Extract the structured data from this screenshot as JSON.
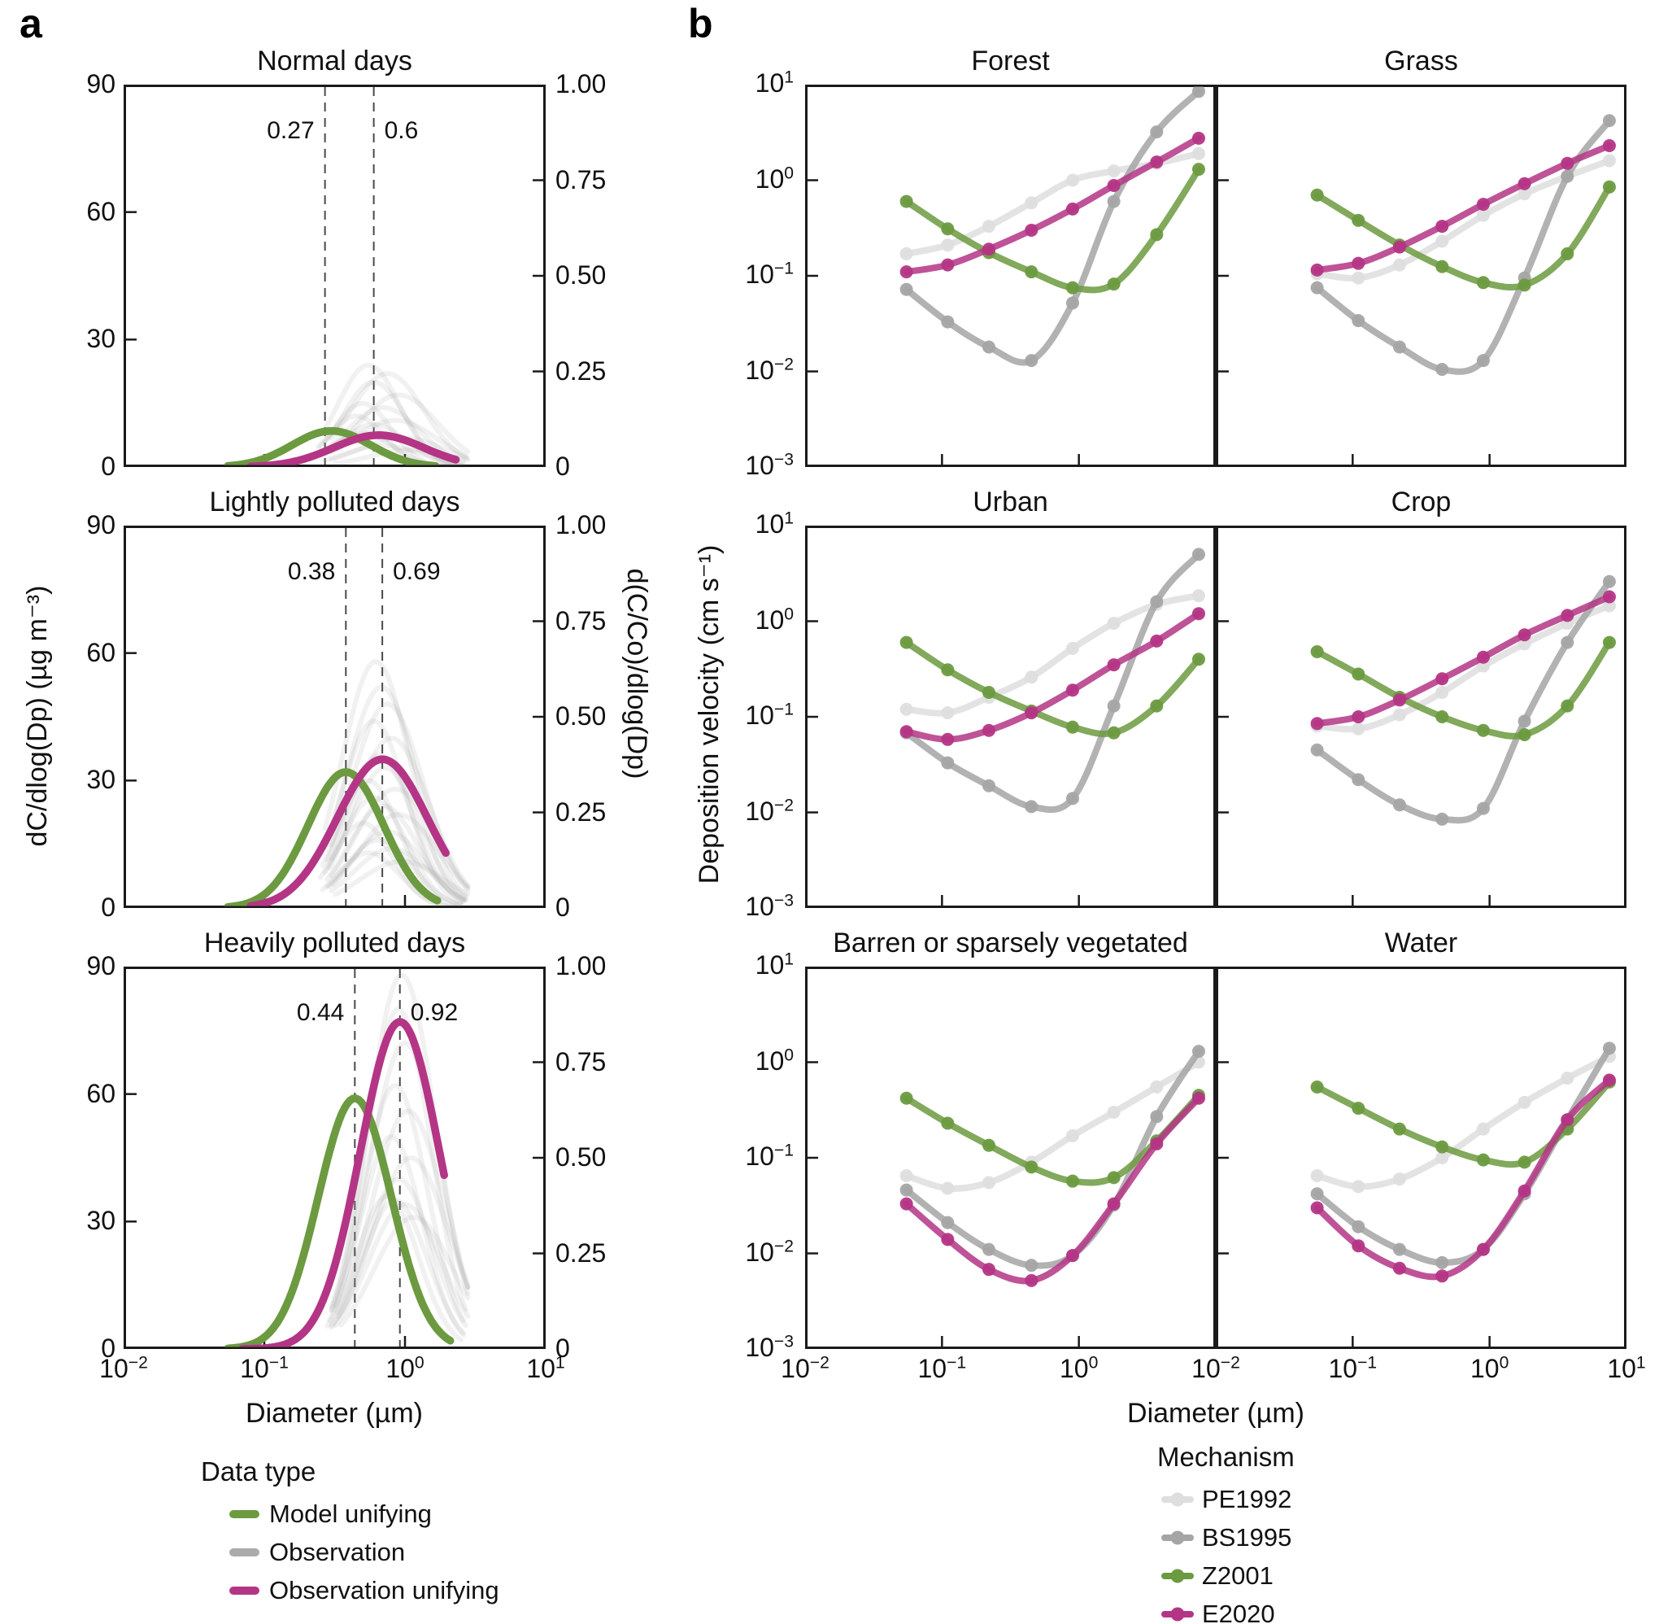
{
  "chart_data": {
    "type": "line",
    "colors": {
      "green": "#6C9A40",
      "magenta": "#B43585",
      "observation": "#8F8F8F",
      "pe1992": "#DEDEDE",
      "bs1995": "#A5A5A5",
      "axis": "#1A1A1A",
      "dashed": "#4A4A4A"
    },
    "panel_a": {
      "label": "a",
      "title_y_left": "dC/dlog(Dp) (µg m⁻³)",
      "title_y_right": "d(C/Co)/dlog(Dp)",
      "xlabel": "Diameter (µm)",
      "xlim": [
        0.01,
        10
      ],
      "ylim": [
        0,
        90
      ],
      "ylim2": [
        0,
        1
      ],
      "x_tick_exponents": [
        -2,
        -1,
        0,
        1
      ],
      "y_ticks": [
        {
          "label": "90",
          "f": 0
        },
        {
          "label": "60",
          "f": 0.3333
        },
        {
          "label": "30",
          "f": 0.6667
        },
        {
          "label": "0",
          "f": 1
        }
      ],
      "y2_ticks": [
        {
          "label": "1.00",
          "f": 0
        },
        {
          "label": "0.75",
          "f": 0.25
        },
        {
          "label": "0.50",
          "f": 0.5
        },
        {
          "label": "0.25",
          "f": 0.75
        },
        {
          "label": "0",
          "f": 1
        }
      ],
      "legend": {
        "title": "Data type",
        "items": [
          {
            "label": "Model unifying",
            "color": "#6C9A40"
          },
          {
            "label": "Observation",
            "color": "#ABABAB"
          },
          {
            "label": "Observation unifying",
            "color": "#B43585"
          }
        ]
      },
      "plots": [
        {
          "title": "Normal days",
          "vlines": [
            {
              "x": 0.27,
              "label": "0.27",
              "side": "left"
            },
            {
              "x": 0.6,
              "label": "0.6",
              "side": "right"
            }
          ],
          "model_unifying": [
            8.5,
            0.3,
            0.28,
            0.055,
            1.65
          ],
          "observation_unifying": [
            7.5,
            0.65,
            0.32,
            0.08,
            2.3
          ],
          "observations": [
            [
              24,
              0.55,
              0.22,
              0.26,
              2.6
            ],
            [
              22,
              0.75,
              0.26,
              0.3,
              2.7
            ],
            [
              20,
              0.6,
              0.22,
              0.27,
              2.5
            ],
            [
              17,
              0.9,
              0.28,
              0.3,
              2.8
            ],
            [
              15,
              0.5,
              0.2,
              0.25,
              2.4
            ],
            [
              14,
              0.7,
              0.26,
              0.28,
              2.6
            ],
            [
              12,
              0.45,
              0.2,
              0.24,
              2.3
            ],
            [
              11,
              0.85,
              0.3,
              0.3,
              2.7
            ],
            [
              10,
              0.6,
              0.24,
              0.26,
              2.5
            ],
            [
              8,
              0.5,
              0.22,
              0.25,
              2.4
            ],
            [
              7,
              0.95,
              0.3,
              0.3,
              2.8
            ],
            [
              6,
              0.42,
              0.2,
              0.24,
              2.2
            ],
            [
              5,
              0.7,
              0.28,
              0.27,
              2.6
            ],
            [
              4,
              1.1,
              0.3,
              0.32,
              2.8
            ]
          ]
        },
        {
          "title": "Lightly polluted days",
          "vlines": [
            {
              "x": 0.38,
              "label": "0.38",
              "side": "left"
            },
            {
              "x": 0.69,
              "label": "0.69",
              "side": "right"
            }
          ],
          "model_unifying": [
            32,
            0.38,
            0.27,
            0.055,
            1.7
          ],
          "observation_unifying": [
            35,
            0.69,
            0.32,
            0.08,
            1.95
          ],
          "observations": [
            [
              58,
              0.62,
              0.24,
              0.27,
              2.6
            ],
            [
              52,
              0.68,
              0.25,
              0.28,
              2.7
            ],
            [
              48,
              0.75,
              0.26,
              0.3,
              2.8
            ],
            [
              44,
              0.6,
              0.23,
              0.27,
              2.5
            ],
            [
              40,
              0.8,
              0.27,
              0.3,
              2.8
            ],
            [
              36,
              0.65,
              0.24,
              0.28,
              2.6
            ],
            [
              33,
              0.72,
              0.25,
              0.29,
              2.7
            ],
            [
              30,
              0.55,
              0.22,
              0.26,
              2.4
            ],
            [
              28,
              0.85,
              0.28,
              0.3,
              2.8
            ],
            [
              26,
              0.6,
              0.23,
              0.27,
              2.5
            ],
            [
              24,
              0.7,
              0.25,
              0.28,
              2.6
            ],
            [
              22,
              0.9,
              0.28,
              0.31,
              2.8
            ],
            [
              20,
              0.5,
              0.21,
              0.25,
              2.3
            ],
            [
              18,
              0.75,
              0.26,
              0.29,
              2.7
            ],
            [
              16,
              0.65,
              0.24,
              0.28,
              2.5
            ],
            [
              14,
              0.8,
              0.27,
              0.3,
              2.7
            ],
            [
              13,
              0.55,
              0.22,
              0.26,
              2.4
            ],
            [
              11,
              0.95,
              0.3,
              0.32,
              2.8
            ]
          ]
        },
        {
          "title": "Heavily polluted days",
          "vlines": [
            {
              "x": 0.44,
              "label": "0.44",
              "side": "left"
            },
            {
              "x": 0.92,
              "label": "0.92",
              "side": "right"
            }
          ],
          "model_unifying": [
            59,
            0.44,
            0.26,
            0.055,
            2.1
          ],
          "observation_unifying": [
            77,
            0.92,
            0.28,
            0.07,
            1.9
          ],
          "observations": [
            [
              88,
              0.95,
              0.24,
              0.3,
              2.8
            ],
            [
              80,
              0.9,
              0.23,
              0.3,
              2.7
            ],
            [
              72,
              1.0,
              0.25,
              0.32,
              2.8
            ],
            [
              62,
              0.85,
              0.23,
              0.3,
              2.6
            ],
            [
              56,
              1.05,
              0.26,
              0.33,
              2.8
            ],
            [
              50,
              0.8,
              0.22,
              0.29,
              2.6
            ],
            [
              45,
              1.1,
              0.27,
              0.34,
              2.8
            ],
            [
              40,
              0.9,
              0.24,
              0.3,
              2.7
            ],
            [
              36,
              0.75,
              0.22,
              0.28,
              2.5
            ],
            [
              34,
              1.0,
              0.26,
              0.32,
              2.8
            ],
            [
              31,
              1.15,
              0.28,
              0.35,
              2.8
            ],
            [
              35,
              0.85,
              0.23,
              0.3,
              2.6
            ]
          ]
        }
      ]
    },
    "panel_b": {
      "label": "b",
      "ylabel": "Deposition velocity (cm s⁻¹)",
      "xlabel": "Diameter (µm)",
      "xlim": [
        0.01,
        10
      ],
      "ylim": [
        0.001,
        10
      ],
      "x_tick_exponents": [
        -2,
        -1,
        0,
        1
      ],
      "y_tick_exponents": [
        1,
        0,
        -1,
        -2,
        -3
      ],
      "mechanisms": [
        "PE1992",
        "BS1995",
        "Z2001",
        "E2020"
      ],
      "mech_colors": {
        "PE1992": "#DEDEDE",
        "BS1995": "#A5A5A5",
        "Z2001": "#6C9A40",
        "E2020": "#B43585"
      },
      "legend": {
        "title": "Mechanism",
        "items": [
          {
            "label": "PE1992",
            "color": "#DEDEDE"
          },
          {
            "label": "BS1995",
            "color": "#A5A5A5"
          },
          {
            "label": "Z2001",
            "color": "#6C9A40"
          },
          {
            "label": "E2020",
            "color": "#B43585"
          }
        ]
      },
      "x_points": [
        0.055,
        0.11,
        0.22,
        0.45,
        0.9,
        1.8,
        3.7,
        7.5
      ],
      "plots": [
        {
          "title": "Forest",
          "series": {
            "PE1992": [
              0.17,
              0.21,
              0.33,
              0.58,
              1.0,
              1.25,
              1.5,
              1.9
            ],
            "BS1995": [
              0.072,
              0.033,
              0.018,
              0.013,
              0.052,
              0.6,
              3.2,
              8.5
            ],
            "Z2001": [
              0.6,
              0.31,
              0.175,
              0.11,
              0.075,
              0.082,
              0.27,
              1.3
            ],
            "E2020": [
              0.11,
              0.13,
              0.19,
              0.3,
              0.5,
              0.88,
              1.55,
              2.75
            ]
          }
        },
        {
          "title": "Grass",
          "series": {
            "PE1992": [
              0.105,
              0.095,
              0.13,
              0.23,
              0.43,
              0.72,
              1.1,
              1.6
            ],
            "BS1995": [
              0.075,
              0.034,
              0.018,
              0.0105,
              0.013,
              0.095,
              1.1,
              4.2
            ],
            "Z2001": [
              0.7,
              0.38,
              0.21,
              0.125,
              0.085,
              0.08,
              0.17,
              0.85
            ],
            "E2020": [
              0.115,
              0.135,
              0.2,
              0.33,
              0.56,
              0.92,
              1.5,
              2.3
            ]
          }
        },
        {
          "title": "Urban",
          "series": {
            "PE1992": [
              0.12,
              0.11,
              0.16,
              0.26,
              0.52,
              0.95,
              1.5,
              1.85
            ],
            "BS1995": [
              0.068,
              0.033,
              0.019,
              0.0115,
              0.014,
              0.13,
              1.6,
              5.0
            ],
            "Z2001": [
              0.6,
              0.31,
              0.18,
              0.115,
              0.078,
              0.068,
              0.13,
              0.4
            ],
            "E2020": [
              0.07,
              0.058,
              0.072,
              0.11,
              0.19,
              0.35,
              0.62,
              1.2
            ]
          }
        },
        {
          "title": "Crop",
          "series": {
            "PE1992": [
              0.08,
              0.075,
              0.105,
              0.18,
              0.34,
              0.58,
              0.95,
              1.45
            ],
            "BS1995": [
              0.045,
              0.022,
              0.012,
              0.0085,
              0.011,
              0.09,
              0.6,
              2.6
            ],
            "Z2001": [
              0.48,
              0.28,
              0.16,
              0.1,
              0.072,
              0.065,
              0.13,
              0.6
            ],
            "E2020": [
              0.085,
              0.1,
              0.15,
              0.25,
              0.42,
              0.72,
              1.15,
              1.8
            ]
          }
        },
        {
          "title": "Barren or sparsely vegetated",
          "series": {
            "PE1992": [
              0.065,
              0.048,
              0.055,
              0.09,
              0.17,
              0.3,
              0.55,
              1.0
            ],
            "BS1995": [
              0.046,
              0.021,
              0.011,
              0.0075,
              0.0095,
              0.032,
              0.27,
              1.3
            ],
            "Z2001": [
              0.42,
              0.23,
              0.135,
              0.08,
              0.057,
              0.062,
              0.15,
              0.45
            ],
            "E2020": [
              0.033,
              0.014,
              0.0068,
              0.0052,
              0.0095,
              0.033,
              0.14,
              0.42
            ]
          }
        },
        {
          "title": "Water",
          "series": {
            "PE1992": [
              0.065,
              0.05,
              0.06,
              0.1,
              0.2,
              0.38,
              0.68,
              1.15
            ],
            "BS1995": [
              0.042,
              0.019,
              0.011,
              0.008,
              0.011,
              0.042,
              0.25,
              1.4
            ],
            "Z2001": [
              0.55,
              0.33,
              0.2,
              0.13,
              0.095,
              0.09,
              0.2,
              0.62
            ],
            "E2020": [
              0.03,
              0.012,
              0.007,
              0.0058,
              0.011,
              0.045,
              0.25,
              0.65
            ]
          }
        }
      ]
    }
  }
}
